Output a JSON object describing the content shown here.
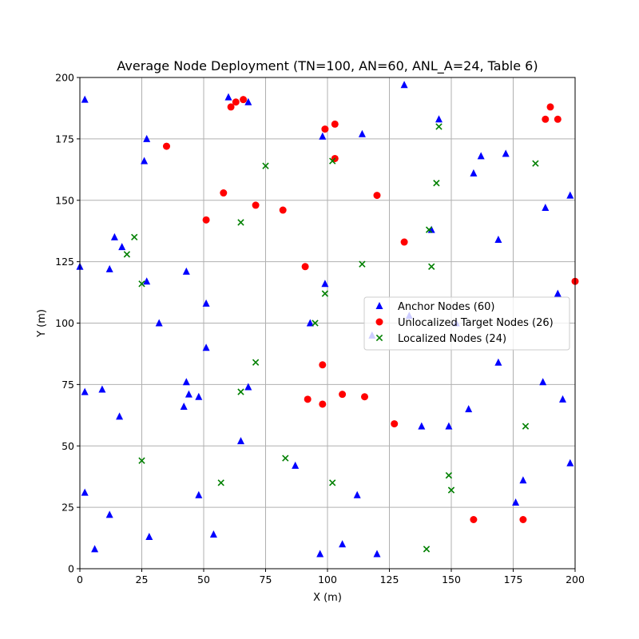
{
  "chart_data": {
    "type": "scatter",
    "title": "Average Node Deployment (TN=100, AN=60, ANL_A=24, Table 6)",
    "xlabel": "X (m)",
    "ylabel": "Y (m)",
    "xlim": [
      0,
      200
    ],
    "ylim": [
      0,
      200
    ],
    "xticks": [
      "0",
      "25",
      "50",
      "75",
      "100",
      "125",
      "150",
      "175",
      "200"
    ],
    "yticks": [
      "0",
      "25",
      "50",
      "75",
      "100",
      "125",
      "150",
      "175",
      "200"
    ],
    "grid": true,
    "legend_position": "center-right",
    "series": [
      {
        "name": "Anchor Nodes (60)",
        "marker": "triangle",
        "color": "#0000ff",
        "points": [
          [
            2,
            191
          ],
          [
            0,
            123
          ],
          [
            2,
            72
          ],
          [
            9,
            73
          ],
          [
            12,
            122
          ],
          [
            14,
            135
          ],
          [
            17,
            131
          ],
          [
            16,
            62
          ],
          [
            2,
            31
          ],
          [
            6,
            8
          ],
          [
            12,
            22
          ],
          [
            26,
            166
          ],
          [
            27,
            175
          ],
          [
            27,
            117
          ],
          [
            32,
            100
          ],
          [
            28,
            13
          ],
          [
            43,
            121
          ],
          [
            43,
            76
          ],
          [
            44,
            71
          ],
          [
            42,
            66
          ],
          [
            48,
            70
          ],
          [
            48,
            30
          ],
          [
            51,
            108
          ],
          [
            51,
            90
          ],
          [
            54,
            14
          ],
          [
            60,
            192
          ],
          [
            68,
            190
          ],
          [
            68,
            74
          ],
          [
            65,
            52
          ],
          [
            87,
            42
          ],
          [
            93,
            100
          ],
          [
            98,
            176
          ],
          [
            99,
            116
          ],
          [
            97,
            6
          ],
          [
            106,
            10
          ],
          [
            112,
            30
          ],
          [
            114,
            177
          ],
          [
            120,
            6
          ],
          [
            118,
            95
          ],
          [
            131,
            197
          ],
          [
            138,
            58
          ],
          [
            142,
            138
          ],
          [
            145,
            183
          ],
          [
            149,
            58
          ],
          [
            152,
            100
          ],
          [
            157,
            65
          ],
          [
            159,
            161
          ],
          [
            162,
            168
          ],
          [
            169,
            134
          ],
          [
            169,
            84
          ],
          [
            172,
            169
          ],
          [
            176,
            27
          ],
          [
            179,
            36
          ],
          [
            187,
            76
          ],
          [
            188,
            147
          ],
          [
            193,
            112
          ],
          [
            195,
            69
          ],
          [
            198,
            152
          ],
          [
            198,
            43
          ],
          [
            133,
            103
          ]
        ]
      },
      {
        "name": "Unlocalized Target Nodes (26)",
        "marker": "circle",
        "color": "#ff0000",
        "points": [
          [
            35,
            172
          ],
          [
            51,
            142
          ],
          [
            58,
            153
          ],
          [
            61,
            188
          ],
          [
            63,
            190
          ],
          [
            66,
            191
          ],
          [
            71,
            148
          ],
          [
            82,
            146
          ],
          [
            91,
            123
          ],
          [
            92,
            69
          ],
          [
            98,
            67
          ],
          [
            98,
            83
          ],
          [
            99,
            179
          ],
          [
            103,
            181
          ],
          [
            103,
            167
          ],
          [
            106,
            71
          ],
          [
            115,
            70
          ],
          [
            120,
            152
          ],
          [
            127,
            59
          ],
          [
            131,
            133
          ],
          [
            159,
            20
          ],
          [
            179,
            20
          ],
          [
            188,
            183
          ],
          [
            190,
            188
          ],
          [
            193,
            183
          ],
          [
            200,
            117
          ]
        ]
      },
      {
        "name": "Localized Nodes (24)",
        "marker": "x",
        "color": "#008000",
        "points": [
          [
            19,
            128
          ],
          [
            22,
            135
          ],
          [
            25,
            116
          ],
          [
            25,
            44
          ],
          [
            57,
            35
          ],
          [
            65,
            141
          ],
          [
            65,
            72
          ],
          [
            71,
            84
          ],
          [
            75,
            164
          ],
          [
            83,
            45
          ],
          [
            95,
            100
          ],
          [
            99,
            112
          ],
          [
            102,
            166
          ],
          [
            102,
            35
          ],
          [
            114,
            124
          ],
          [
            140,
            8
          ],
          [
            141,
            138
          ],
          [
            142,
            123
          ],
          [
            144,
            157
          ],
          [
            145,
            180
          ],
          [
            149,
            38
          ],
          [
            150,
            32
          ],
          [
            180,
            58
          ],
          [
            184,
            165
          ]
        ]
      }
    ]
  }
}
